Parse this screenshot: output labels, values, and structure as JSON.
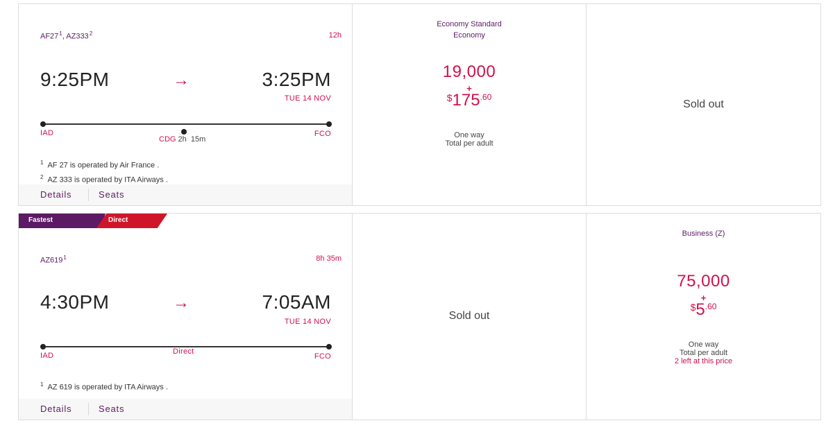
{
  "flights": [
    {
      "flight_numbers": [
        {
          "code": "AF27",
          "ref": "1"
        },
        {
          "code": "AZ333",
          "ref": "2"
        }
      ],
      "separator": ",",
      "duration": "12h",
      "depart_time": "9:25PM",
      "arrive_time": "3:25PM",
      "arrow": "→",
      "arrive_date": "TUE 14 NOV",
      "origin": "IAD",
      "stop": {
        "code": "CDG",
        "layover_h": "2h",
        "layover_m": "15m"
      },
      "destination": "FCO",
      "notes": [
        {
          "ref": "1",
          "text": "AF 27 is operated by Air France ."
        },
        {
          "ref": "2",
          "text": "AZ 333 is operated by ITA Airways ."
        }
      ],
      "details_label": "Details",
      "seats_label": "Seats",
      "fare_a": {
        "cabin_line1": "Economy Standard",
        "cabin_line2": "Economy",
        "points": "19,000",
        "plus": "+",
        "currency": "$",
        "cash_whole": "175",
        "cash_cents": ".60",
        "trip_type": "One way",
        "per_adult": "Total per adult"
      },
      "fare_b": {
        "sold_out": "Sold out"
      }
    },
    {
      "badges": [
        "Fastest",
        "Direct"
      ],
      "flight_numbers": [
        {
          "code": "AZ619",
          "ref": "1"
        }
      ],
      "duration": "8h 35m",
      "depart_time": "4:30PM",
      "arrive_time": "7:05AM",
      "arrow": "→",
      "arrive_date": "TUE 14 NOV",
      "origin": "IAD",
      "route_label": "Direct",
      "destination": "FCO",
      "notes": [
        {
          "ref": "1",
          "text": "AZ 619 is operated by ITA Airways ."
        }
      ],
      "details_label": "Details",
      "seats_label": "Seats",
      "fare_a": {
        "sold_out": "Sold out"
      },
      "fare_b": {
        "cabin_line1": "Business (Z)",
        "points": "75,000",
        "plus": "+",
        "currency": "$",
        "cash_whole": "5",
        "cash_cents": ".60",
        "trip_type": "One way",
        "per_adult": "Total per adult",
        "availability": "2 left at this price"
      }
    }
  ],
  "colors": {
    "accent_red": "#d0104c",
    "brand_purple": "#5b1a63",
    "badge_red": "#d0152b"
  }
}
